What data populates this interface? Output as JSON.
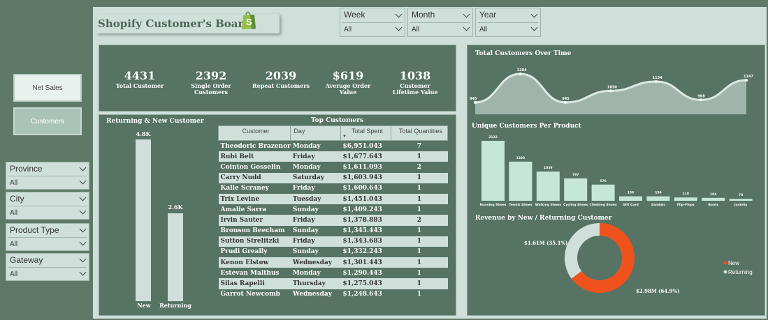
{
  "app": {
    "title": "Shopify Customer's Board"
  },
  "top_filters": [
    {
      "label": "Week",
      "value": "All"
    },
    {
      "label": "Month",
      "value": "All"
    },
    {
      "label": "Year",
      "value": "All"
    }
  ],
  "nav": {
    "net_sales": "Net Sales",
    "customers": "Customers"
  },
  "side_filters": [
    {
      "label": "Province",
      "value": "All"
    },
    {
      "label": "City",
      "value": "All"
    },
    {
      "label": "Product Type",
      "value": "All"
    },
    {
      "label": "Gateway",
      "value": "All"
    }
  ],
  "kpis": [
    {
      "value": "4431",
      "label": "Total Customer"
    },
    {
      "value": "2392",
      "label": "Single Order Customers"
    },
    {
      "value": "2039",
      "label": "Repeat Customers"
    },
    {
      "value": "$619",
      "label": "Average Order Value"
    },
    {
      "value": "1038",
      "label": "Customer Lifetime Value"
    }
  ],
  "returning_new": {
    "title": "Returning & New Customer",
    "bars": [
      {
        "label": "New",
        "value_label": "4.8K",
        "value": 4800
      },
      {
        "label": "Returning",
        "value_label": "2.6K",
        "value": 2600
      }
    ]
  },
  "top_customers": {
    "title": "Top Customers",
    "columns": [
      "Customer",
      "Day",
      "Total Spent",
      "Total Quantities"
    ],
    "rows": [
      [
        "Theodoric Brazenor",
        "Monday",
        "$6,951.043",
        "7"
      ],
      [
        "Rubi Belt",
        "Friday",
        "$1,677.643",
        "1"
      ],
      [
        "Cointon Gosselin",
        "Monday",
        "$1,611.093",
        "2"
      ],
      [
        "Carry Nudd",
        "Saturday",
        "$1,603.943",
        "1"
      ],
      [
        "Kalle Scraney",
        "Friday",
        "$1,600.643",
        "1"
      ],
      [
        "Trix Levine",
        "Tuesday",
        "$1,451.043",
        "1"
      ],
      [
        "Amalie Sarra",
        "Sunday",
        "$1,409.243",
        "1"
      ],
      [
        "Irvin Sauter",
        "Friday",
        "$1,378.883",
        "2"
      ],
      [
        "Bronson Beecham",
        "Sunday",
        "$1,345.443",
        "1"
      ],
      [
        "Sutton Strelitzki",
        "Friday",
        "$1,343.683",
        "1"
      ],
      [
        "Prudi Greally",
        "Sunday",
        "$1,332.243",
        "1"
      ],
      [
        "Kenon Elstow",
        "Wednesday",
        "$1,301.443",
        "1"
      ],
      [
        "Estevan Malthus",
        "Monday",
        "$1,290.443",
        "1"
      ],
      [
        "Silas Rapelli",
        "Thursday",
        "$1,275.043",
        "1"
      ],
      [
        "Garrot Newcomb",
        "Wednesday",
        "$1,248.643",
        "1"
      ]
    ]
  },
  "chart_data": [
    {
      "type": "area",
      "title": "Total Customers Over Time",
      "y": [
        945,
        1204,
        945,
        1050,
        1134,
        968,
        1147
      ]
    },
    {
      "type": "bar",
      "title": "Unique Customers Per Product",
      "categories": [
        "Running Shoes",
        "Tennis Shoes",
        "Walking Shoes",
        "Cycling Shoes",
        "Climbing Shoes",
        "Gift Card",
        "Sandals",
        "Flip-Flops",
        "Boots",
        "Jackets"
      ],
      "values": [
        2132,
        1393,
        1039,
        797,
        576,
        159,
        159,
        118,
        104,
        70
      ]
    },
    {
      "type": "pie",
      "title": "Revenue by New / Returning Customer",
      "slices": [
        {
          "name": "New",
          "value": 2.98,
          "label": "$2.98M (64.9%)",
          "color": "#f0521d"
        },
        {
          "name": "Returning",
          "value": 1.61,
          "label": "$1.61M (35.1%)",
          "color": "#cfe0da"
        }
      ]
    }
  ]
}
